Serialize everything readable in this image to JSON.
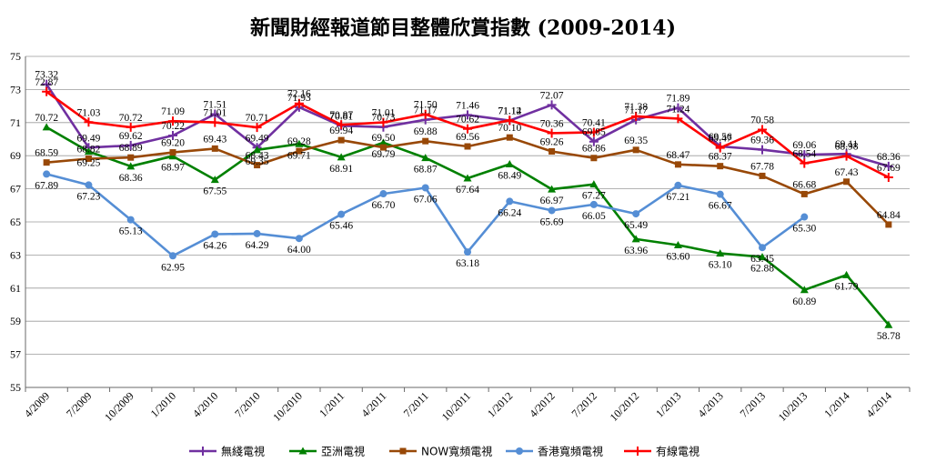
{
  "chart_data": {
    "type": "line",
    "title": "新聞財經報道節目整體欣賞指數 (2009-2014)",
    "xlabel": "",
    "ylabel": "",
    "ylim": [
      55,
      75
    ],
    "yticks": [
      55,
      57,
      59,
      61,
      63,
      65,
      67,
      69,
      71,
      73,
      75
    ],
    "grid": true,
    "legend_position": "bottom",
    "categories": [
      "4/2009",
      "7/2009",
      "10/2009",
      "1/2010",
      "4/2010",
      "7/2010",
      "10/2010",
      "1/2011",
      "4/2011",
      "7/2011",
      "10/2011",
      "1/2012",
      "4/2012",
      "7/2012",
      "10/2012",
      "1/2013",
      "4/2013",
      "7/2013",
      "10/2013",
      "1/2014",
      "4/2014"
    ],
    "series": [
      {
        "name": "無綫電視",
        "color": "#7030a0",
        "marker": "plus",
        "values": [
          73.32,
          69.49,
          69.62,
          70.22,
          71.51,
          69.49,
          71.93,
          70.81,
          70.73,
          71.17,
          71.46,
          71.12,
          72.07,
          69.85,
          71.17,
          71.89,
          69.56,
          69.36,
          69.06,
          69.11,
          68.36
        ]
      },
      {
        "name": "亞洲電視",
        "color": "#008000",
        "marker": "triangle",
        "values": [
          70.72,
          69.25,
          68.36,
          68.97,
          67.55,
          69.35,
          69.71,
          68.91,
          69.79,
          68.87,
          67.64,
          68.49,
          66.97,
          67.27,
          63.96,
          63.6,
          63.1,
          62.88,
          60.89,
          61.79,
          58.78
        ]
      },
      {
        "name": "NOW寬頻電視",
        "color": "#984807",
        "marker": "square",
        "values": [
          68.59,
          68.82,
          68.89,
          69.2,
          69.43,
          68.43,
          69.28,
          69.94,
          69.5,
          69.88,
          69.56,
          70.1,
          69.26,
          68.86,
          69.35,
          68.47,
          68.37,
          67.78,
          66.68,
          67.43,
          64.84
        ]
      },
      {
        "name": "香港寬頻電視",
        "color": "#558ed5",
        "marker": "circle",
        "values": [
          67.89,
          67.23,
          65.13,
          62.95,
          64.26,
          64.29,
          64.0,
          65.46,
          66.7,
          67.06,
          63.18,
          66.24,
          65.69,
          66.05,
          65.49,
          67.21,
          66.67,
          63.45,
          65.3,
          null,
          null
        ]
      },
      {
        "name": "有線電視",
        "color": "#ff0000",
        "marker": "plus",
        "values": [
          72.87,
          71.03,
          70.72,
          71.09,
          71.01,
          70.71,
          72.16,
          70.87,
          71.01,
          71.5,
          70.62,
          71.14,
          70.36,
          70.41,
          71.38,
          71.24,
          69.47,
          70.58,
          68.54,
          68.98,
          67.69
        ]
      }
    ]
  }
}
